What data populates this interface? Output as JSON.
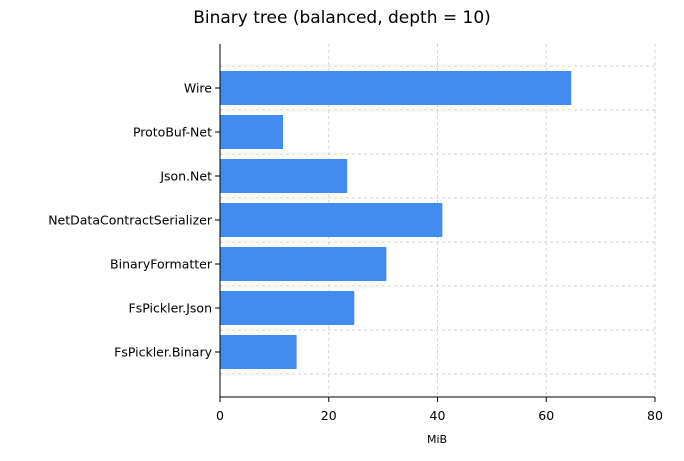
{
  "chart_data": {
    "type": "bar",
    "orientation": "horizontal",
    "title": "Binary tree (balanced, depth = 10)",
    "xlabel": "MiB",
    "ylabel": "",
    "categories": [
      "Wire",
      "ProtoBuf-Net",
      "Json.Net",
      "NetDataContractSerializer",
      "BinaryFormatter",
      "FsPickler.Json",
      "FsPickler.Binary"
    ],
    "values": [
      64.5,
      11.5,
      23.3,
      40.8,
      30.5,
      24.6,
      14.0
    ],
    "xlim": [
      0,
      80
    ],
    "xticks": [
      "0",
      "20",
      "40",
      "60",
      "80"
    ],
    "grid": true,
    "bar_color": "#428cf0",
    "grid_color": "#d3d3d3"
  }
}
